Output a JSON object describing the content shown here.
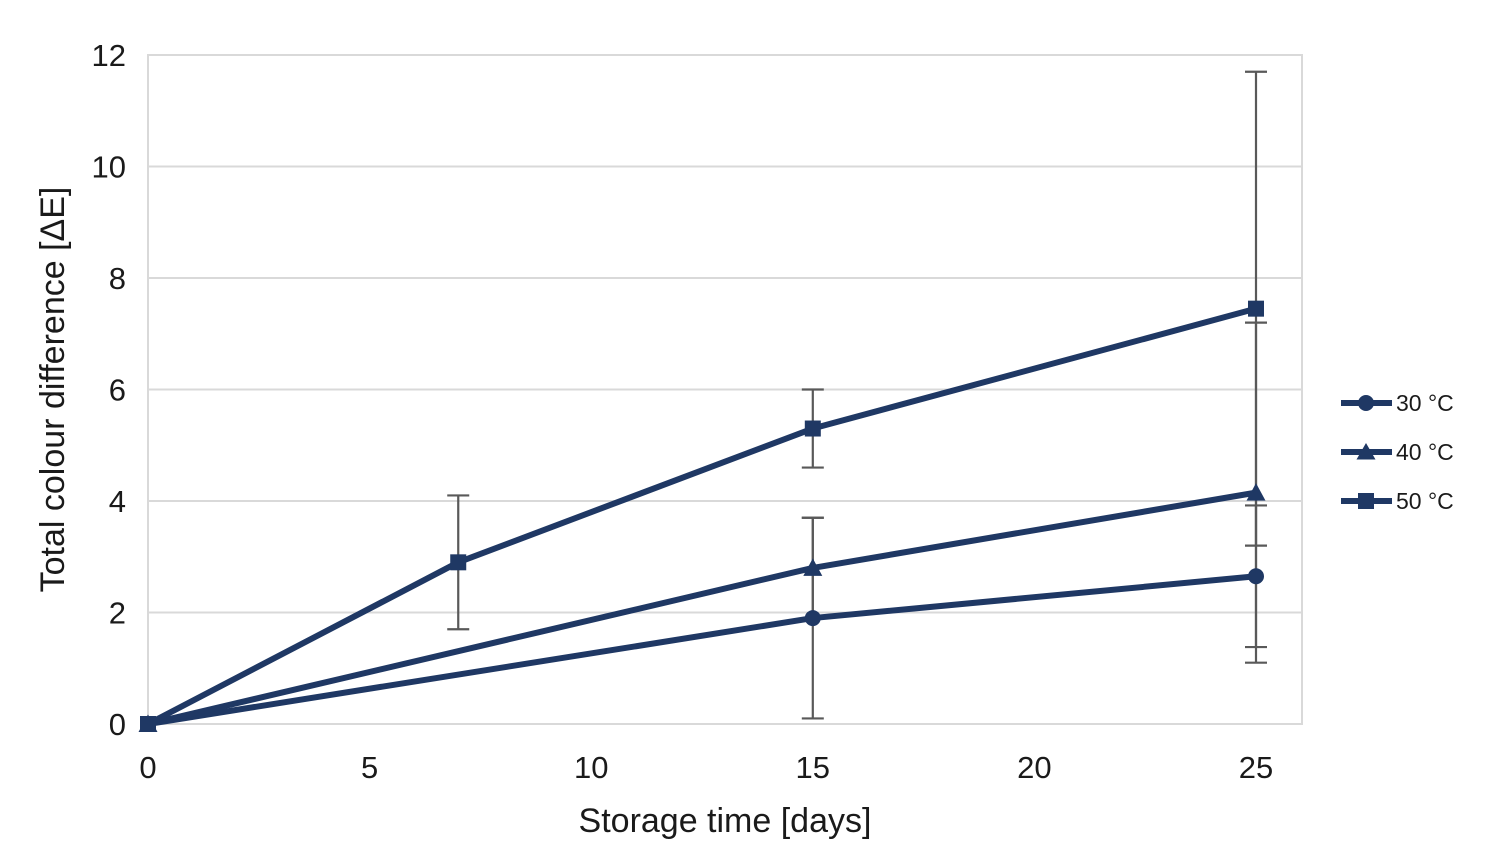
{
  "chart_data": {
    "type": "line",
    "title": "",
    "xlabel": "Storage time [days]",
    "ylabel": "Total colour difference [ΔE]",
    "xlim": [
      0,
      26
    ],
    "ylim": [
      0,
      12
    ],
    "x_ticks": [
      0,
      5,
      10,
      15,
      20,
      25
    ],
    "y_ticks": [
      0,
      2,
      4,
      6,
      8,
      10,
      12
    ],
    "grid": "horizontal-only",
    "legend_position": "right-middle",
    "series": [
      {
        "name": "30 °C",
        "marker": "circle",
        "x": [
          0,
          15,
          25
        ],
        "y": [
          0,
          1.9,
          2.65
        ],
        "yerr": [
          0,
          1.8,
          1.27
        ]
      },
      {
        "name": "40 °C",
        "marker": "triangle",
        "x": [
          0,
          15,
          25
        ],
        "y": [
          0,
          2.8,
          4.15
        ],
        "yerr": [
          0,
          0.9,
          3.05
        ]
      },
      {
        "name": "50 °C",
        "marker": "square",
        "x": [
          0,
          7,
          15,
          25
        ],
        "y": [
          0,
          2.9,
          5.3,
          7.45
        ],
        "yerr": [
          0,
          1.2,
          0.7,
          4.25
        ]
      }
    ],
    "colors": {
      "series": "#1f3864",
      "gridline": "#d9d9d9",
      "error_bar": "#595959",
      "text": "#1a1a1a",
      "background": "#ffffff"
    }
  }
}
